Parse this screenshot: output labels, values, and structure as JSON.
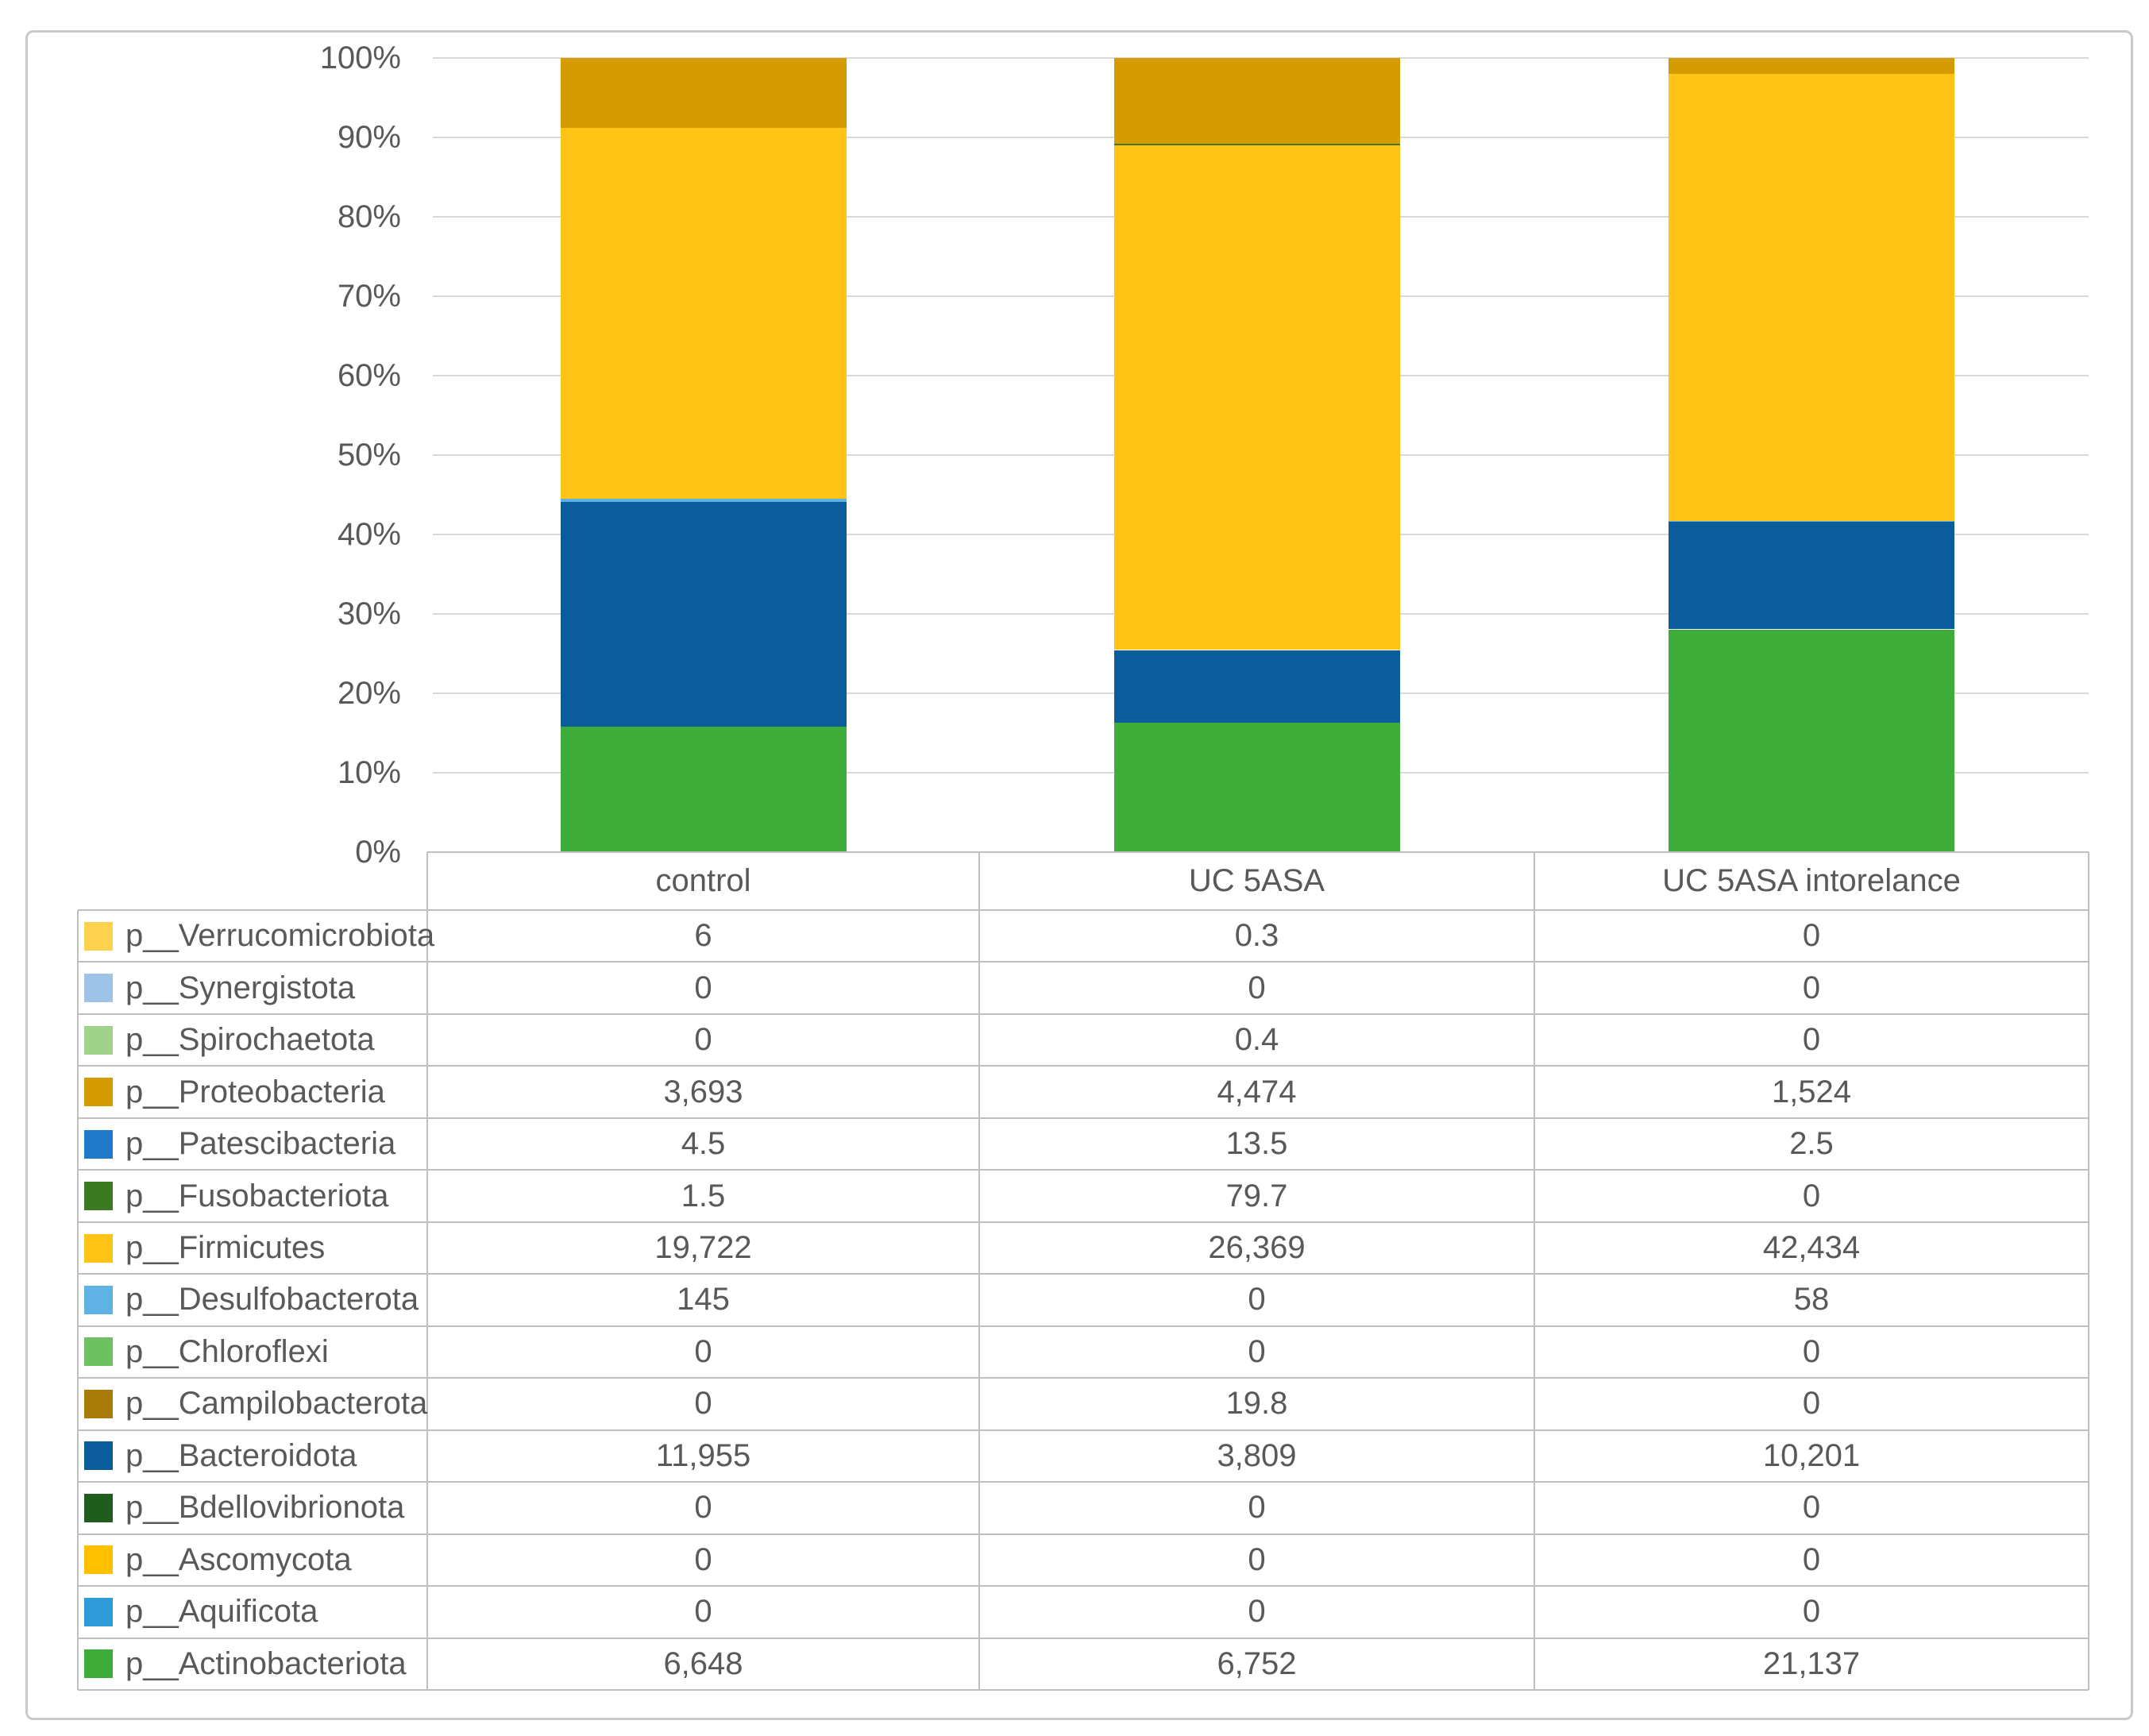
{
  "chart_data": {
    "type": "bar",
    "subtype": "stacked-100-percent-column",
    "title": "",
    "categories": [
      "control",
      "UC 5ASA",
      "UC 5ASA intorelance"
    ],
    "y_axis": {
      "ticks": [
        "100%",
        "90%",
        "80%",
        "70%",
        "60%",
        "50%",
        "40%",
        "30%",
        "20%",
        "10%",
        "0%"
      ],
      "min": 0,
      "max": 100,
      "grid": true
    },
    "legend_position": "table-below-chart",
    "stack_note": "first listed series is at top of stack; bottom of stack is last listed series",
    "series": [
      {
        "name": "p__Verrucomicrobiota",
        "color": "#ffd24d",
        "values": [
          6,
          0.3,
          0
        ],
        "display": [
          "6",
          "0.3",
          "0"
        ]
      },
      {
        "name": "p__Synergistota",
        "color": "#9dc3e6",
        "values": [
          0,
          0,
          0
        ],
        "display": [
          "0",
          "0",
          "0"
        ]
      },
      {
        "name": "p__Spirochaetota",
        "color": "#a0d389",
        "values": [
          0,
          0.4,
          0
        ],
        "display": [
          "0",
          "0.4",
          "0"
        ]
      },
      {
        "name": "p__Proteobacteria",
        "color": "#d59b00",
        "values": [
          3693,
          4474,
          1524
        ],
        "display": [
          "3,693",
          "4,474",
          "1,524"
        ]
      },
      {
        "name": "p__Patescibacteria",
        "color": "#1f78c8",
        "values": [
          4.5,
          13.5,
          2.5
        ],
        "display": [
          "4.5",
          "13.5",
          "2.5"
        ]
      },
      {
        "name": "p__Fusobacteriota",
        "color": "#3c7a22",
        "values": [
          1.5,
          79.7,
          0
        ],
        "display": [
          "1.5",
          "79.7",
          "0"
        ]
      },
      {
        "name": "p__Firmicutes",
        "color": "#ffc415",
        "values": [
          19722,
          26369,
          42434
        ],
        "display": [
          "19,722",
          "26,369",
          "42,434"
        ]
      },
      {
        "name": "p__Desulfobacterota",
        "color": "#5eb3e4",
        "values": [
          145,
          0,
          58
        ],
        "display": [
          "145",
          "0",
          "58"
        ]
      },
      {
        "name": "p__Chloroflexi",
        "color": "#6ec160",
        "values": [
          0,
          0,
          0
        ],
        "display": [
          "0",
          "0",
          "0"
        ]
      },
      {
        "name": "p__Campilobacterota",
        "color": "#a97b08",
        "values": [
          0,
          19.8,
          0
        ],
        "display": [
          "0",
          "19.8",
          "0"
        ]
      },
      {
        "name": "p__Bacteroidota",
        "color": "#0b5c9b",
        "values": [
          11955,
          3809,
          10201
        ],
        "display": [
          "11,955",
          "3,809",
          "10,201"
        ]
      },
      {
        "name": "p__Bdellovibrionota",
        "color": "#1f5c1d",
        "values": [
          0,
          0,
          0
        ],
        "display": [
          "0",
          "0",
          "0"
        ]
      },
      {
        "name": "p__Ascomycota",
        "color": "#ffc000",
        "values": [
          0,
          0,
          0
        ],
        "display": [
          "0",
          "0",
          "0"
        ]
      },
      {
        "name": "p__Aquificota",
        "color": "#2e9bd8",
        "values": [
          0,
          0,
          0
        ],
        "display": [
          "0",
          "0",
          "0"
        ]
      },
      {
        "name": "p__Actinobacteriota",
        "color": "#3eac38",
        "values": [
          6648,
          6752,
          21137
        ],
        "display": [
          "6,648",
          "6,752",
          "21,137"
        ]
      }
    ]
  },
  "table": {
    "header": [
      "control",
      "UC 5ASA",
      "UC 5ASA intorelance"
    ]
  },
  "colors": {
    "text": "#595959",
    "gridline": "#d9d9d9",
    "table_border": "#bfbfbf",
    "figure_border": "#c9c9c9",
    "background": "#ffffff"
  }
}
